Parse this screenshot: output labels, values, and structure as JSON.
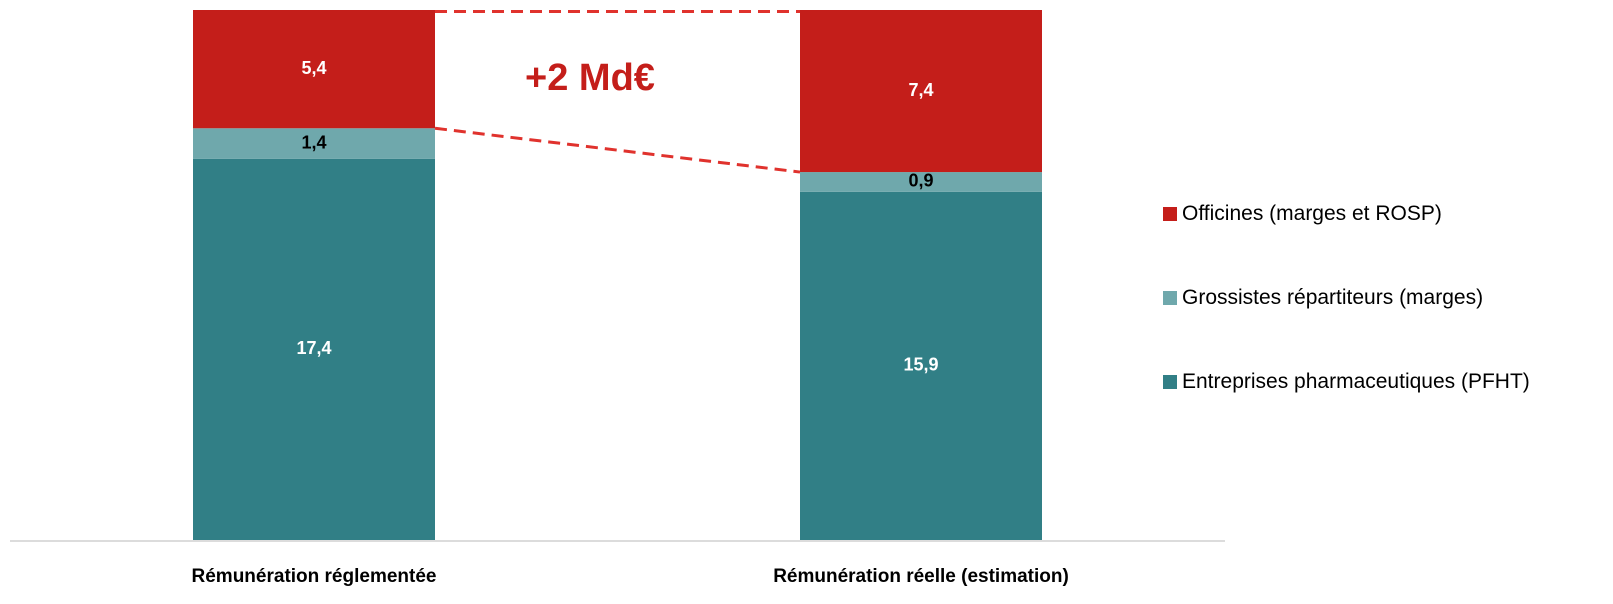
{
  "chart_data": {
    "type": "stacked-bar",
    "categories": [
      "Rémunération réglementée",
      "Rémunération réelle (estimation)"
    ],
    "series": [
      {
        "name": "Entreprises pharmaceutiques (PFHT)",
        "color": "#317f86",
        "values": [
          17.4,
          15.9
        ],
        "value_labels": [
          "17,4",
          "15,9"
        ]
      },
      {
        "name": "Grossistes répartiteurs (marges)",
        "color": "#6fa8ac",
        "values": [
          1.4,
          0.9
        ],
        "value_labels": [
          "1,4",
          "0,9"
        ]
      },
      {
        "name": "Officines (marges et ROSP)",
        "color": "#c41e1a",
        "values": [
          5.4,
          7.4
        ],
        "value_labels": [
          "5,4",
          "7,4"
        ]
      }
    ],
    "annotations": [
      "+2 Md€"
    ],
    "ylim": [
      0,
      24.2
    ],
    "legend": "right"
  }
}
